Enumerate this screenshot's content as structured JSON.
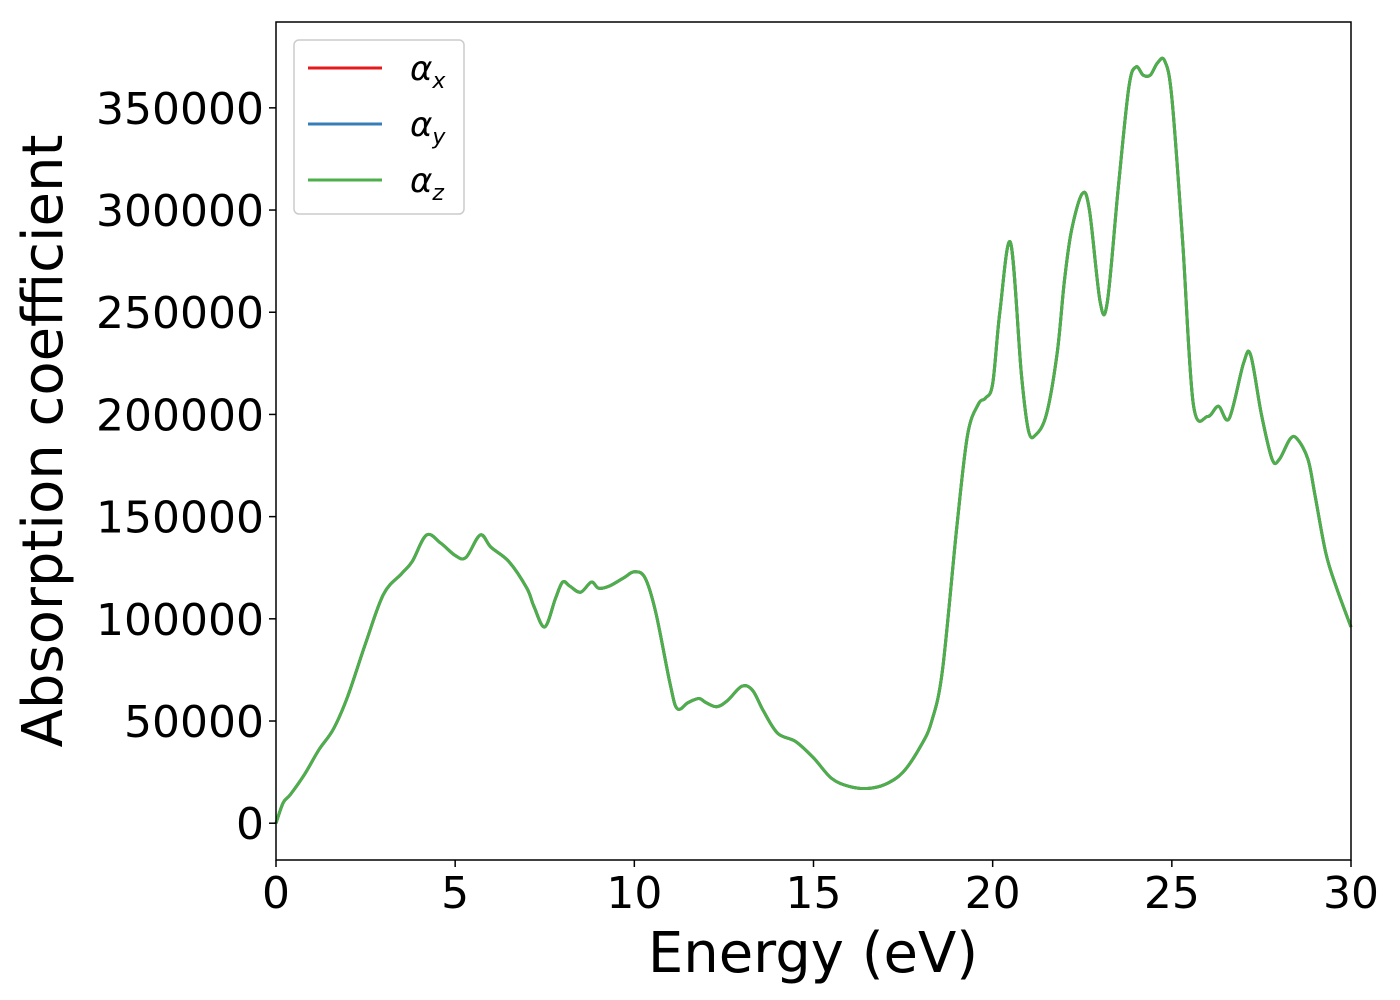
{
  "chart_data": {
    "type": "line",
    "title": "",
    "xlabel": "Energy (eV)",
    "ylabel": "Absorption coefficient",
    "xlim": [
      0,
      30
    ],
    "ylim": [
      -18000,
      392000
    ],
    "xticks": [
      0,
      5,
      10,
      15,
      20,
      25,
      30
    ],
    "yticks": [
      0,
      50000,
      100000,
      150000,
      200000,
      250000,
      300000,
      350000
    ],
    "grid": false,
    "legend_position": "top-left",
    "x": [
      0,
      0.2,
      0.4,
      0.8,
      1.2,
      1.6,
      2.0,
      2.5,
      3.0,
      3.5,
      3.8,
      4.2,
      4.6,
      5.0,
      5.3,
      5.7,
      6.0,
      6.5,
      7.0,
      7.2,
      7.5,
      7.8,
      8.0,
      8.2,
      8.5,
      8.8,
      9.0,
      9.3,
      9.7,
      10.0,
      10.3,
      10.6,
      11.0,
      11.2,
      11.5,
      11.8,
      12.0,
      12.3,
      12.6,
      13.0,
      13.3,
      13.6,
      14.0,
      14.5,
      15.0,
      15.5,
      16.0,
      16.5,
      17.0,
      17.5,
      18.0,
      18.3,
      18.6,
      19.0,
      19.3,
      19.6,
      19.8,
      20.0,
      20.2,
      20.5,
      20.8,
      21.0,
      21.2,
      21.5,
      21.8,
      22.0,
      22.2,
      22.5,
      22.7,
      23.0,
      23.2,
      23.5,
      23.8,
      24.0,
      24.2,
      24.4,
      24.6,
      24.8,
      25.0,
      25.3,
      25.6,
      26.0,
      26.3,
      26.6,
      27.0,
      27.2,
      27.5,
      27.8,
      28.0,
      28.3,
      28.5,
      28.8,
      29.0,
      29.3,
      29.6,
      30.0
    ],
    "series": [
      {
        "name": "α_x",
        "color": "#e41a1c",
        "values": [
          0,
          10000,
          14000,
          24000,
          36000,
          46000,
          62000,
          88000,
          112000,
          122000,
          128000,
          141000,
          137000,
          131000,
          130000,
          141000,
          135000,
          128000,
          115000,
          106000,
          96000,
          110000,
          118000,
          116000,
          113000,
          118000,
          115000,
          116000,
          120000,
          123000,
          120000,
          103000,
          68000,
          56000,
          59000,
          61000,
          59000,
          57000,
          60000,
          67000,
          65000,
          55000,
          44000,
          40000,
          32000,
          22000,
          18000,
          17000,
          19000,
          25000,
          38000,
          50000,
          75000,
          145000,
          190000,
          205000,
          208000,
          215000,
          250000,
          284000,
          220000,
          192000,
          190000,
          200000,
          230000,
          265000,
          290000,
          308000,
          300000,
          255000,
          255000,
          310000,
          360000,
          370000,
          366000,
          366000,
          372000,
          373000,
          355000,
          285000,
          205000,
          199000,
          204000,
          198000,
          225000,
          229000,
          200000,
          178000,
          178000,
          188000,
          188000,
          178000,
          160000,
          132000,
          115000,
          96000
        ]
      },
      {
        "name": "α_y",
        "color": "#377eb8",
        "values": [
          0,
          10000,
          14000,
          24000,
          36000,
          46000,
          62000,
          88000,
          112000,
          122000,
          128000,
          141000,
          137000,
          131000,
          130000,
          141000,
          135000,
          128000,
          115000,
          106000,
          96000,
          110000,
          118000,
          116000,
          113000,
          118000,
          115000,
          116000,
          120000,
          123000,
          120000,
          103000,
          68000,
          56000,
          59000,
          61000,
          59000,
          57000,
          60000,
          67000,
          65000,
          55000,
          44000,
          40000,
          32000,
          22000,
          18000,
          17000,
          19000,
          25000,
          38000,
          50000,
          75000,
          145000,
          190000,
          205000,
          208000,
          215000,
          250000,
          284000,
          220000,
          192000,
          190000,
          200000,
          230000,
          265000,
          290000,
          308000,
          300000,
          255000,
          255000,
          310000,
          360000,
          370000,
          366000,
          366000,
          372000,
          373000,
          355000,
          285000,
          205000,
          199000,
          204000,
          198000,
          225000,
          229000,
          200000,
          178000,
          178000,
          188000,
          188000,
          178000,
          160000,
          132000,
          115000,
          96000
        ]
      },
      {
        "name": "α_z",
        "color": "#4daf4a",
        "values": [
          0,
          10000,
          14000,
          24000,
          36000,
          46000,
          62000,
          88000,
          112000,
          122000,
          128000,
          141000,
          137000,
          131000,
          130000,
          141000,
          135000,
          128000,
          115000,
          106000,
          96000,
          110000,
          118000,
          116000,
          113000,
          118000,
          115000,
          116000,
          120000,
          123000,
          120000,
          103000,
          68000,
          56000,
          59000,
          61000,
          59000,
          57000,
          60000,
          67000,
          65000,
          55000,
          44000,
          40000,
          32000,
          22000,
          18000,
          17000,
          19000,
          25000,
          38000,
          50000,
          75000,
          145000,
          190000,
          205000,
          208000,
          215000,
          250000,
          284000,
          220000,
          192000,
          190000,
          200000,
          230000,
          265000,
          290000,
          308000,
          300000,
          255000,
          255000,
          310000,
          360000,
          370000,
          366000,
          366000,
          372000,
          373000,
          355000,
          285000,
          205000,
          199000,
          204000,
          198000,
          225000,
          229000,
          200000,
          178000,
          178000,
          188000,
          188000,
          178000,
          160000,
          132000,
          115000,
          96000
        ]
      }
    ]
  }
}
